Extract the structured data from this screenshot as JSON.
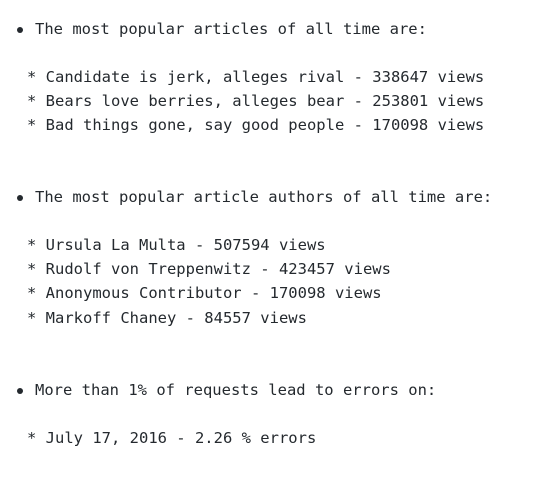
{
  "sections": [
    {
      "heading": "The most popular articles of all time are:",
      "items": [
        "* Candidate is jerk, alleges rival - 338647 views",
        "* Bears love berries, alleges bear - 253801 views",
        "* Bad things gone, say good people - 170098 views"
      ]
    },
    {
      "heading": "The most popular article authors of all time are:",
      "items": [
        "* Ursula La Multa - 507594 views",
        "* Rudolf von Treppenwitz - 423457 views",
        "* Anonymous Contributor - 170098 views",
        "* Markoff Chaney - 84557 views"
      ]
    },
    {
      "heading": "More than 1% of requests lead to errors on:",
      "items": [
        "* July 17, 2016 - 2.26 % errors"
      ]
    }
  ]
}
